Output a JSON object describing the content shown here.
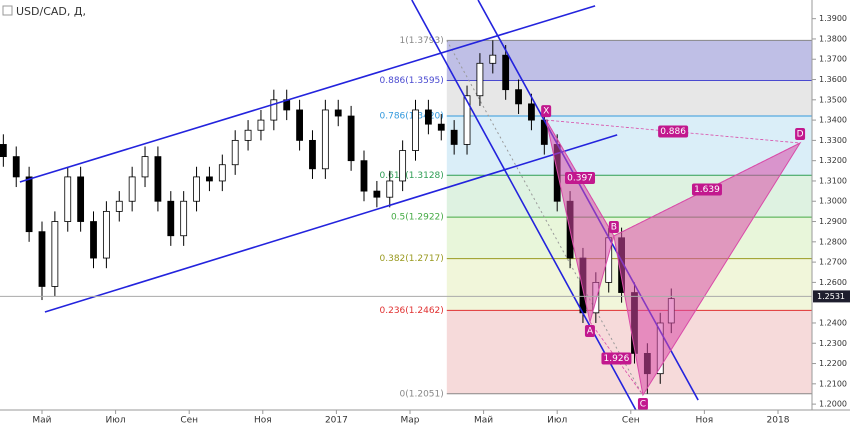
{
  "chart_data": {
    "type": "candlestick",
    "title": "USD/CAD, Д,",
    "x": [
      -1.05,
      -0.7,
      -0.35,
      0,
      0.35,
      0.7,
      1.05,
      1.4,
      1.75,
      2.1,
      2.45,
      2.8,
      3.15,
      3.5,
      3.85,
      4.2,
      4.55,
      4.9,
      5.25,
      5.6,
      5.95,
      6.3,
      6.65,
      7,
      7.35,
      7.7,
      8.05,
      8.4,
      8.75,
      9.1,
      9.45,
      9.8,
      10.15,
      10.5,
      10.85,
      11.2,
      11.55,
      11.9,
      12.25,
      12.6,
      12.95,
      13.3,
      13.65,
      14,
      14.35,
      14.7,
      15.05,
      15.4,
      15.75,
      16.1,
      16.45,
      16.8,
      17.1
    ],
    "open": [
      1.328,
      1.322,
      1.312,
      1.285,
      1.258,
      1.29,
      1.312,
      1.29,
      1.272,
      1.295,
      1.3,
      1.312,
      1.322,
      1.3,
      1.283,
      1.3,
      1.312,
      1.31,
      1.318,
      1.33,
      1.335,
      1.34,
      1.35,
      1.345,
      1.33,
      1.316,
      1.345,
      1.342,
      1.32,
      1.305,
      1.302,
      1.31,
      1.325,
      1.345,
      1.338,
      1.335,
      1.328,
      1.352,
      1.368,
      1.372,
      1.355,
      1.348,
      1.34,
      1.328,
      1.3,
      1.272,
      1.245,
      1.26,
      1.282,
      1.255,
      1.225,
      1.215,
      1.24
    ],
    "high": [
      1.333,
      1.327,
      1.317,
      1.29,
      1.295,
      1.317,
      1.317,
      1.295,
      1.3,
      1.305,
      1.317,
      1.327,
      1.327,
      1.305,
      1.305,
      1.317,
      1.317,
      1.323,
      1.335,
      1.34,
      1.345,
      1.355,
      1.355,
      1.35,
      1.335,
      1.35,
      1.35,
      1.347,
      1.325,
      1.31,
      1.315,
      1.33,
      1.35,
      1.35,
      1.343,
      1.34,
      1.357,
      1.373,
      1.3793,
      1.377,
      1.36,
      1.353,
      1.345,
      1.333,
      1.305,
      1.277,
      1.265,
      1.287,
      1.287,
      1.26,
      1.23,
      1.245,
      1.257
    ],
    "low": [
      1.317,
      1.307,
      1.28,
      1.2513,
      1.253,
      1.285,
      1.285,
      1.267,
      1.267,
      1.29,
      1.295,
      1.307,
      1.295,
      1.278,
      1.278,
      1.295,
      1.305,
      1.305,
      1.313,
      1.325,
      1.33,
      1.335,
      1.34,
      1.325,
      1.311,
      1.311,
      1.337,
      1.315,
      1.3,
      1.297,
      1.297,
      1.305,
      1.32,
      1.333,
      1.33,
      1.323,
      1.323,
      1.347,
      1.363,
      1.35,
      1.343,
      1.335,
      1.323,
      1.295,
      1.267,
      1.24,
      1.24,
      1.255,
      1.25,
      1.22,
      1.2051,
      1.21,
      1.235
    ],
    "close": [
      1.322,
      1.312,
      1.285,
      1.258,
      1.29,
      1.312,
      1.29,
      1.272,
      1.295,
      1.3,
      1.312,
      1.322,
      1.3,
      1.283,
      1.3,
      1.312,
      1.31,
      1.318,
      1.33,
      1.335,
      1.34,
      1.35,
      1.345,
      1.33,
      1.316,
      1.345,
      1.342,
      1.32,
      1.305,
      1.302,
      1.31,
      1.325,
      1.345,
      1.338,
      1.335,
      1.328,
      1.352,
      1.368,
      1.372,
      1.355,
      1.348,
      1.34,
      1.328,
      1.3,
      1.272,
      1.245,
      1.26,
      1.282,
      1.255,
      1.225,
      1.215,
      1.24,
      1.252
    ],
    "xlim": [
      -1.141,
      20.924
    ],
    "xticks": [
      {
        "value": 0,
        "label": "Май"
      },
      {
        "value": 2,
        "label": "Июл"
      },
      {
        "value": 4,
        "label": "Сен"
      },
      {
        "value": 6,
        "label": "Ноя"
      },
      {
        "value": 8,
        "label": "2017"
      },
      {
        "value": 10,
        "label": "Мар"
      },
      {
        "value": 12,
        "label": "Май"
      },
      {
        "value": 14,
        "label": "Июл"
      },
      {
        "value": 16,
        "label": "Сен"
      },
      {
        "value": 18,
        "label": "Ноя"
      },
      {
        "value": 20,
        "label": "2018"
      }
    ],
    "ylim": [
      1.1971,
      1.3992
    ],
    "yticks": [
      {
        "value": 1.39,
        "label": "1.3900"
      },
      {
        "value": 1.38,
        "label": "1.3800"
      },
      {
        "value": 1.37,
        "label": "1.3700"
      },
      {
        "value": 1.36,
        "label": "1.3600"
      },
      {
        "value": 1.35,
        "label": "1.3500"
      },
      {
        "value": 1.34,
        "label": "1.3400"
      },
      {
        "value": 1.33,
        "label": "1.3300"
      },
      {
        "value": 1.32,
        "label": "1.3200"
      },
      {
        "value": 1.31,
        "label": "1.3100"
      },
      {
        "value": 1.3,
        "label": "1.3000"
      },
      {
        "value": 1.29,
        "label": "1.2900"
      },
      {
        "value": 1.28,
        "label": "1.2800"
      },
      {
        "value": 1.27,
        "label": "1.2700"
      },
      {
        "value": 1.26,
        "label": "1.2600"
      },
      {
        "value": 1.24,
        "label": "1.2400"
      },
      {
        "value": 1.23,
        "label": "1.2300"
      },
      {
        "value": 1.22,
        "label": "1.2200"
      },
      {
        "value": 1.21,
        "label": "1.2100"
      },
      {
        "value": 1.2,
        "label": "1.2000"
      }
    ],
    "last_price": 1.2531,
    "fib": {
      "x_start": 11.0,
      "levels": [
        {
          "label": "1(1.3793)",
          "price": 1.3793,
          "color": "#888888",
          "fill": "#b4b4e2"
        },
        {
          "label": "0.886(1.3595)",
          "price": 1.3595,
          "color": "#4a4ad0",
          "fill": "#e3e3e3"
        },
        {
          "label": "0.786(1.3420)",
          "price": 1.342,
          "color": "#3399dd",
          "fill": "#d3ebf7"
        },
        {
          "label": "0.618(1.3128)",
          "price": 1.3128,
          "color": "#2e9e55",
          "fill": "#d8f0dc"
        },
        {
          "label": "0.5(1.2922)",
          "price": 1.2922,
          "color": "#44aa44",
          "fill": "#e4f4d4"
        },
        {
          "label": "0.382(1.2717)",
          "price": 1.2717,
          "color": "#9a9a20",
          "fill": "#eef4d4"
        },
        {
          "label": "0.236(1.2462)",
          "price": 1.2462,
          "color": "#e03030",
          "fill": "#f5d4d4"
        },
        {
          "label": "0(1.2051)",
          "price": 1.2051,
          "color": "#888888",
          "fill": "none"
        }
      ]
    },
    "trendlines": [
      {
        "x": [
          -0.6,
          15.03
        ],
        "y": [
          1.3095,
          1.3963
        ],
        "color": "#2323dd"
      },
      {
        "x": [
          0.08,
          15.63
        ],
        "y": [
          1.2454,
          1.3327
        ],
        "color": "#2323dd"
      },
      {
        "x": [
          10.05,
          16.14
        ],
        "y": [
          1.3992,
          1.197
        ],
        "color": "#2323dd"
      },
      {
        "x": [
          11.85,
          17.83
        ],
        "y": [
          1.3992,
          1.202
        ],
        "color": "#2323dd"
      }
    ],
    "pattern": {
      "color": "#d94aa8",
      "points": [
        {
          "label": "X",
          "x": 13.7,
          "y": 1.34
        },
        {
          "label": "A",
          "x": 14.89,
          "y": 1.2405
        },
        {
          "label": "B",
          "x": 15.54,
          "y": 1.2829
        },
        {
          "label": "C",
          "x": 16.33,
          "y": 1.2045
        },
        {
          "label": "D",
          "x": 20.6,
          "y": 1.3287
        }
      ],
      "ratios": [
        "0.397",
        "1.926",
        "1.639",
        "0.886"
      ]
    }
  }
}
